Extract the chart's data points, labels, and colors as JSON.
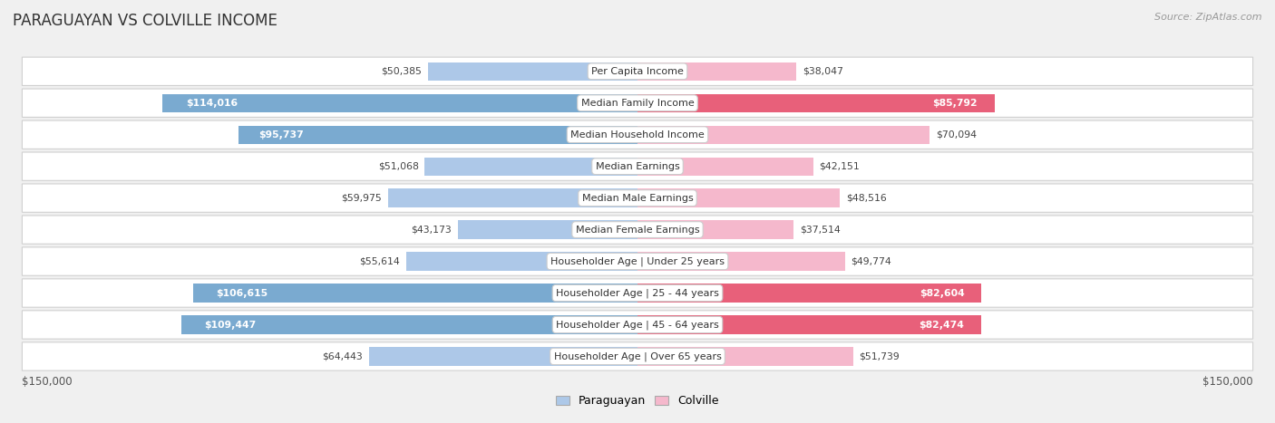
{
  "title": "PARAGUAYAN VS COLVILLE INCOME",
  "source": "Source: ZipAtlas.com",
  "categories": [
    "Per Capita Income",
    "Median Family Income",
    "Median Household Income",
    "Median Earnings",
    "Median Male Earnings",
    "Median Female Earnings",
    "Householder Age | Under 25 years",
    "Householder Age | 25 - 44 years",
    "Householder Age | 45 - 64 years",
    "Householder Age | Over 65 years"
  ],
  "paraguayan_values": [
    50385,
    114016,
    95737,
    51068,
    59975,
    43173,
    55614,
    106615,
    109447,
    64443
  ],
  "colville_values": [
    38047,
    85792,
    70094,
    42151,
    48516,
    37514,
    49774,
    82604,
    82474,
    51739
  ],
  "paraguayan_labels": [
    "$50,385",
    "$114,016",
    "$95,737",
    "$51,068",
    "$59,975",
    "$43,173",
    "$55,614",
    "$106,615",
    "$109,447",
    "$64,443"
  ],
  "colville_labels": [
    "$38,047",
    "$85,792",
    "$70,094",
    "$42,151",
    "$48,516",
    "$37,514",
    "$49,774",
    "$82,604",
    "$82,474",
    "$51,739"
  ],
  "max_value": 150000,
  "par_color_light": "#adc8e8",
  "par_color_dark": "#7aaad0",
  "col_color_light": "#f5b8cc",
  "col_color_dark": "#e8607a",
  "label_threshold_par": 80000,
  "label_threshold_col": 80000,
  "background_color": "#f0f0f0",
  "row_bg_color": "#ffffff",
  "paraguayan_legend": "Paraguayan",
  "colville_legend": "Colville",
  "x_label_left": "$150,000",
  "x_label_right": "$150,000"
}
